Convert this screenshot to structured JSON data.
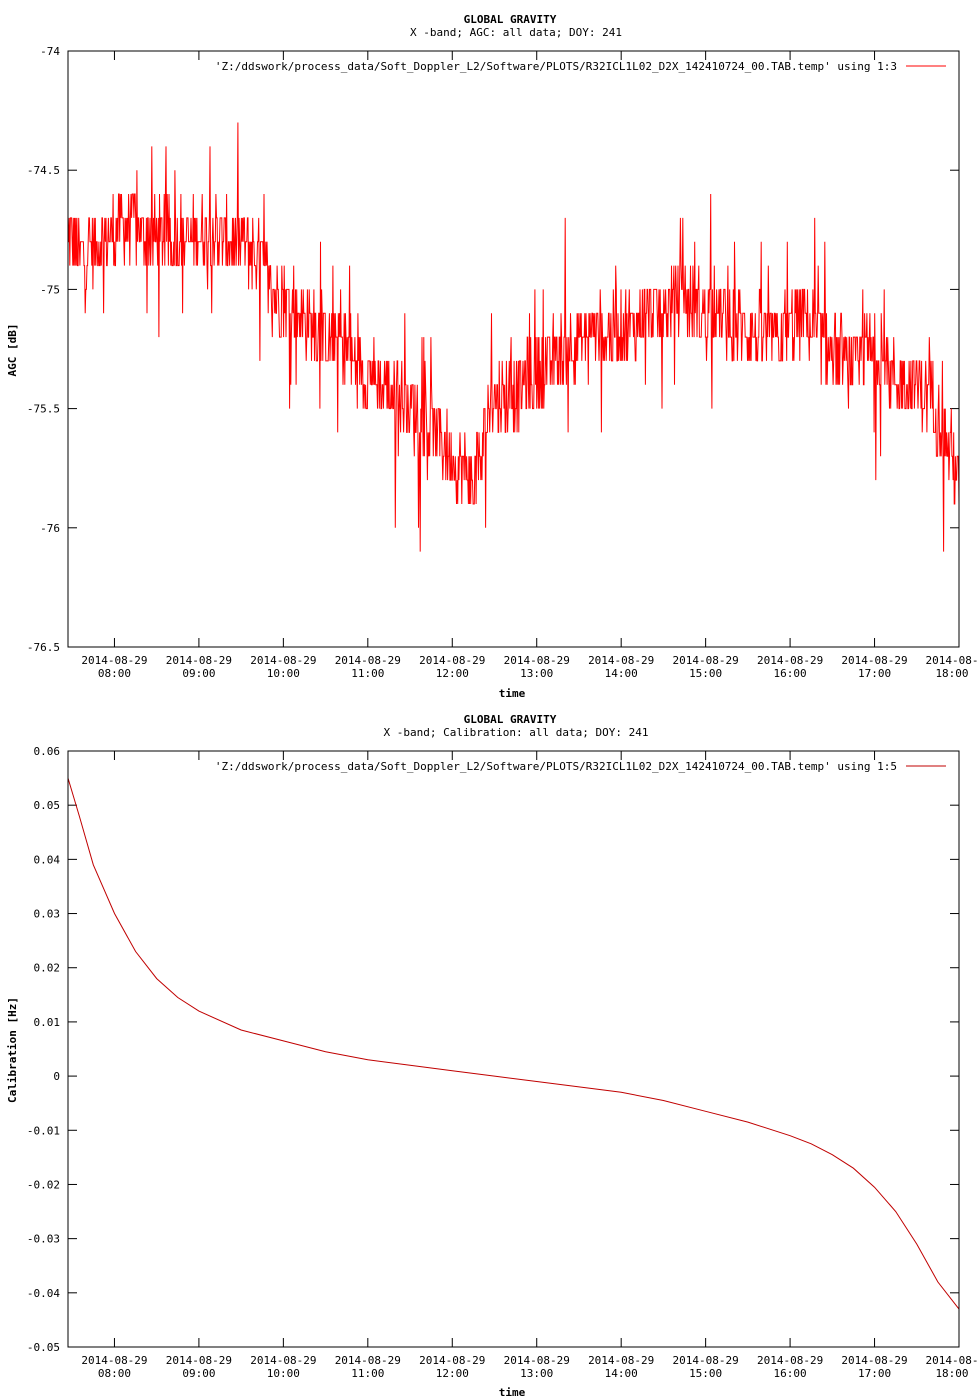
{
  "colors": {
    "series": "#ff0000",
    "series_dark": "#c00000",
    "axis": "#000000",
    "background": "#ffffff"
  },
  "chart_data": [
    {
      "type": "line",
      "title": "GLOBAL GRAVITY",
      "subtitle": "X -band; AGC: all data; DOY: 241",
      "xlabel": "time",
      "ylabel": "AGC [dB]",
      "xlim": [
        "2014-08-29 07:27",
        "2014-08-29 18:00"
      ],
      "ylim": [
        -76.5,
        -74
      ],
      "y_ticks": [
        -74,
        -74.5,
        -75,
        -75.5,
        -76,
        -76.5
      ],
      "y_tick_labels": [
        "-74",
        "-74.5",
        "-75",
        "-75.5",
        "-76",
        "-76.5"
      ],
      "x_ticks": [
        "08:00",
        "09:00",
        "10:00",
        "11:00",
        "12:00",
        "13:00",
        "14:00",
        "15:00",
        "16:00",
        "17:00",
        "18:00"
      ],
      "x_tick_dates": [
        "2014-08-29",
        "2014-08-29",
        "2014-08-29",
        "2014-08-29",
        "2014-08-29",
        "2014-08-29",
        "2014-08-29",
        "2014-08-29",
        "2014-08-29",
        "2014-08-29",
        "2014-08-"
      ],
      "x_tick_times": [
        "08:00",
        "09:00",
        "10:00",
        "11:00",
        "12:00",
        "13:00",
        "14:00",
        "15:00",
        "16:00",
        "17:00",
        "18:00"
      ],
      "grid": false,
      "legend_position": "top-right",
      "series": [
        {
          "name": "'Z:/ddswork/process_data/Soft_Doppler_L2/Software/PLOTS/R32ICL1L02_D2X_142410724_00.TAB.temp' using 1:3",
          "x": [
            "07:27",
            "07:30",
            "07:35",
            "07:40",
            "07:45",
            "07:50",
            "07:55",
            "08:00",
            "08:10",
            "08:20",
            "08:30",
            "08:40",
            "08:50",
            "09:00",
            "09:10",
            "09:20",
            "09:30",
            "09:40",
            "09:50",
            "10:00",
            "10:10",
            "10:20",
            "10:30",
            "10:40",
            "10:50",
            "11:00",
            "11:10",
            "11:20",
            "11:30",
            "11:40",
            "11:50",
            "12:00",
            "12:10",
            "12:15",
            "12:20",
            "12:25",
            "12:30",
            "12:40",
            "12:50",
            "13:00",
            "13:10",
            "13:20",
            "13:30",
            "13:40",
            "13:50",
            "14:00",
            "14:10",
            "14:20",
            "14:30",
            "14:40",
            "14:50",
            "15:00",
            "15:10",
            "15:20",
            "15:30",
            "15:40",
            "15:50",
            "16:00",
            "16:10",
            "16:20",
            "16:30",
            "16:40",
            "16:50",
            "17:00",
            "17:10",
            "17:20",
            "17:30",
            "17:40",
            "17:50",
            "18:00"
          ],
          "values": [
            -74.8,
            -74.8,
            -74.85,
            -74.85,
            -74.82,
            -74.8,
            -74.78,
            -74.75,
            -74.7,
            -74.75,
            -74.78,
            -74.78,
            -74.8,
            -74.75,
            -74.75,
            -74.8,
            -74.8,
            -74.85,
            -74.95,
            -75.05,
            -75.1,
            -75.15,
            -75.2,
            -75.2,
            -75.3,
            -75.35,
            -75.4,
            -75.45,
            -75.5,
            -75.55,
            -75.6,
            -75.7,
            -75.75,
            -75.8,
            -75.75,
            -75.5,
            -75.45,
            -75.45,
            -75.4,
            -75.35,
            -75.3,
            -75.25,
            -75.2,
            -75.15,
            -75.2,
            -75.15,
            -75.15,
            -75.1,
            -75.1,
            -75.05,
            -75.05,
            -75.1,
            -75.1,
            -75.15,
            -75.15,
            -75.2,
            -75.2,
            -75.15,
            -75.1,
            -75.2,
            -75.25,
            -75.3,
            -75.3,
            -75.25,
            -75.35,
            -75.4,
            -75.4,
            -75.45,
            -75.6,
            -75.8
          ]
        }
      ]
    },
    {
      "type": "line",
      "title": "GLOBAL GRAVITY",
      "subtitle": "X -band; Calibration: all data; DOY: 241",
      "xlabel": "time",
      "ylabel": "Calibration [Hz]",
      "xlim": [
        "2014-08-29 07:27",
        "2014-08-29 18:00"
      ],
      "ylim": [
        -0.05,
        0.06
      ],
      "y_ticks": [
        0.06,
        0.05,
        0.04,
        0.03,
        0.02,
        0.01,
        0,
        -0.01,
        -0.02,
        -0.03,
        -0.04,
        -0.05
      ],
      "y_tick_labels": [
        "0.06",
        "0.05",
        "0.04",
        "0.03",
        "0.02",
        "0.01",
        "0",
        "-0.01",
        "-0.02",
        "-0.03",
        "-0.04",
        "-0.05"
      ],
      "x_ticks": [
        "08:00",
        "09:00",
        "10:00",
        "11:00",
        "12:00",
        "13:00",
        "14:00",
        "15:00",
        "16:00",
        "17:00",
        "18:00"
      ],
      "x_tick_dates": [
        "2014-08-29",
        "2014-08-29",
        "2014-08-29",
        "2014-08-29",
        "2014-08-29",
        "2014-08-29",
        "2014-08-29",
        "2014-08-29",
        "2014-08-29",
        "2014-08-29",
        "2014-08-"
      ],
      "x_tick_times": [
        "08:00",
        "09:00",
        "10:00",
        "11:00",
        "12:00",
        "13:00",
        "14:00",
        "15:00",
        "16:00",
        "17:00",
        "18:00"
      ],
      "grid": false,
      "legend_position": "top-right",
      "series": [
        {
          "name": "'Z:/ddswork/process_data/Soft_Doppler_L2/Software/PLOTS/R32ICL1L02_D2X_142410724_00.TAB.temp' using 1:5",
          "x": [
            "07:27",
            "07:35",
            "07:45",
            "08:00",
            "08:15",
            "08:30",
            "08:45",
            "09:00",
            "09:30",
            "10:00",
            "10:30",
            "11:00",
            "11:30",
            "12:00",
            "12:30",
            "13:00",
            "13:30",
            "14:00",
            "14:30",
            "15:00",
            "15:30",
            "16:00",
            "16:15",
            "16:30",
            "16:45",
            "17:00",
            "17:15",
            "17:30",
            "17:45",
            "18:00"
          ],
          "values": [
            0.055,
            0.048,
            0.039,
            0.03,
            0.023,
            0.018,
            0.0145,
            0.012,
            0.0085,
            0.0065,
            0.0045,
            0.003,
            0.002,
            0.001,
            0.0,
            -0.001,
            -0.002,
            -0.003,
            -0.0045,
            -0.0065,
            -0.0085,
            -0.011,
            -0.0125,
            -0.0145,
            -0.017,
            -0.0205,
            -0.025,
            -0.031,
            -0.038,
            -0.043
          ]
        }
      ]
    }
  ]
}
